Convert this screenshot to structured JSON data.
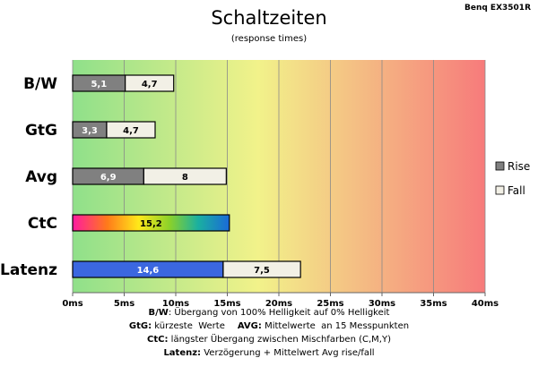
{
  "header": {
    "title": "Schaltzeiten",
    "subtitle": "(response times)",
    "model": "Benq EX3501R"
  },
  "legend": {
    "items": [
      {
        "label": "Rise",
        "color": "#808080"
      },
      {
        "label": "Fall",
        "color": "#f2f0e6"
      }
    ]
  },
  "notes": {
    "line1": {
      "key": "B/W",
      "text": ":  Übergang von 100% Helligkeit auf 0% Helligkeit"
    },
    "line2": {
      "key": "GtG:",
      "text": " kürzeste  Werte",
      "key2": "AVG:",
      "text2": " Mittelwerte  an 15 Messpunkten"
    },
    "line3": {
      "key": "CtC:",
      "text": " längster Übergang  zwischen Mischfarben  (C,M,Y)"
    },
    "line4": {
      "key": "Latenz:",
      "text": " Verzögerung  + Mittelwert  Avg rise/fall"
    }
  },
  "colors": {
    "rise": "#808080",
    "fall": "#f2f0e6",
    "latenz": "#3b67e0",
    "border": "#000000",
    "background_start": "#8fe08a",
    "background_mid": "#f2f28a",
    "background_end": "#f77b7b"
  },
  "chart_data": {
    "type": "bar",
    "orientation": "horizontal",
    "stacked": true,
    "title": "Schaltzeiten",
    "subtitle": "(response times)",
    "categories": [
      "B/W",
      "GtG",
      "Avg",
      "CtC",
      "Latenz"
    ],
    "series": [
      {
        "name": "Rise",
        "values": [
          5.1,
          3.3,
          6.9,
          15.2,
          14.6
        ],
        "labels": [
          "5,1",
          "3,3",
          "6,9",
          "15,2",
          "14,6"
        ]
      },
      {
        "name": "Fall",
        "values": [
          4.7,
          4.7,
          8,
          null,
          7.5
        ],
        "labels": [
          "4,7",
          "4,7",
          "8",
          "",
          "7,5"
        ]
      }
    ],
    "xlim": [
      0,
      40
    ],
    "xticks": [
      0,
      5,
      10,
      15,
      20,
      25,
      30,
      35,
      40
    ],
    "xtick_labels": [
      "0ms",
      "5ms",
      "10ms",
      "15ms",
      "20ms",
      "25ms",
      "30ms",
      "35ms",
      "40ms"
    ],
    "grid": true,
    "legend_position": "right"
  }
}
